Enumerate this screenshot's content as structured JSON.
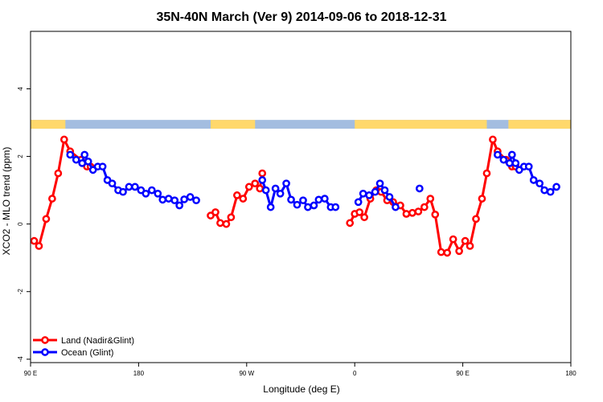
{
  "chart_data": {
    "type": "line",
    "title": "35N-40N March (Ver 9)   2014-09-06 to 2018-12-31",
    "xlabel": "Longitude (deg E)",
    "ylabel": "XCO2 - MLO trend (ppm)",
    "xlim": [
      90,
      540
    ],
    "ylim": [
      -4.1,
      5.7
    ],
    "x_ticks": [
      {
        "value": 90,
        "label": "90 E"
      },
      {
        "value": 180,
        "label": "180"
      },
      {
        "value": 270,
        "label": "90 W"
      },
      {
        "value": 360,
        "label": "0"
      },
      {
        "value": 450,
        "label": "90 E"
      },
      {
        "value": 540,
        "label": "180"
      }
    ],
    "y_ticks": [
      {
        "value": -4,
        "label": "-4"
      },
      {
        "value": -2,
        "label": "-2"
      },
      {
        "value": 0,
        "label": "0"
      },
      {
        "value": 2,
        "label": "2"
      },
      {
        "value": 4,
        "label": "4"
      }
    ],
    "legend_position": "bottom-left",
    "series": [
      {
        "name": "Land (Nadir&Glint)",
        "color": "#ff0000",
        "segments": [
          [
            [
              93,
              -0.5
            ],
            [
              97,
              -0.65
            ],
            [
              103,
              0.15
            ],
            [
              108,
              0.75
            ],
            [
              113,
              1.5
            ],
            [
              118,
              2.5
            ],
            [
              123,
              2.15
            ],
            [
              132,
              1.9
            ],
            [
              137,
              1.7
            ],
            [
              140,
              1.7
            ]
          ],
          [
            [
              240,
              0.25
            ],
            [
              244,
              0.35
            ],
            [
              248,
              0.03
            ],
            [
              253,
              0.0
            ],
            [
              257,
              0.2
            ],
            [
              262,
              0.85
            ],
            [
              267,
              0.75
            ],
            [
              272,
              1.1
            ],
            [
              277,
              1.2
            ],
            [
              281,
              1.05
            ],
            [
              283,
              1.5
            ]
          ],
          [
            [
              356,
              0.03
            ],
            [
              360,
              0.3
            ],
            [
              364,
              0.35
            ],
            [
              368,
              0.2
            ],
            [
              373,
              0.75
            ],
            [
              378,
              1.0
            ],
            [
              382,
              0.95
            ],
            [
              387,
              0.7
            ],
            [
              392,
              0.65
            ],
            [
              398,
              0.55
            ],
            [
              403,
              0.3
            ],
            [
              408,
              0.33
            ],
            [
              413,
              0.37
            ],
            [
              418,
              0.5
            ],
            [
              423,
              0.75
            ],
            [
              427,
              0.28
            ],
            [
              432,
              -0.83
            ],
            [
              437,
              -0.85
            ],
            [
              442,
              -0.45
            ],
            [
              447,
              -0.8
            ],
            [
              452,
              -0.5
            ],
            [
              456,
              -0.65
            ],
            [
              461,
              0.15
            ],
            [
              466,
              0.75
            ],
            [
              470,
              1.5
            ],
            [
              475,
              2.5
            ],
            [
              479,
              2.15
            ],
            [
              486,
              1.9
            ],
            [
              491,
              1.7
            ],
            [
              494,
              1.7
            ]
          ]
        ]
      },
      {
        "name": "Ocean (Glint)",
        "color": "#0000ff",
        "segments": [
          [
            [
              123,
              2.05
            ],
            [
              128,
              1.9
            ],
            [
              133,
              1.8
            ],
            [
              135,
              2.05
            ],
            [
              138,
              1.85
            ],
            [
              142,
              1.6
            ],
            [
              146,
              1.7
            ],
            [
              150,
              1.7
            ],
            [
              154,
              1.3
            ],
            [
              158,
              1.2
            ],
            [
              163,
              1.0
            ],
            [
              167,
              0.95
            ],
            [
              172,
              1.1
            ],
            [
              177,
              1.1
            ],
            [
              182,
              1.0
            ],
            [
              186,
              0.9
            ],
            [
              191,
              1.0
            ],
            [
              196,
              0.9
            ],
            [
              200,
              0.72
            ],
            [
              205,
              0.75
            ],
            [
              210,
              0.7
            ],
            [
              214,
              0.55
            ],
            [
              218,
              0.73
            ],
            [
              223,
              0.8
            ],
            [
              228,
              0.7
            ]
          ],
          [
            [
              283,
              1.3
            ],
            [
              286,
              1.0
            ],
            [
              290,
              0.5
            ],
            [
              294,
              1.05
            ],
            [
              298,
              0.9
            ],
            [
              303,
              1.2
            ],
            [
              307,
              0.72
            ],
            [
              312,
              0.57
            ],
            [
              317,
              0.7
            ],
            [
              321,
              0.5
            ],
            [
              326,
              0.55
            ],
            [
              330,
              0.72
            ],
            [
              335,
              0.75
            ],
            [
              340,
              0.5
            ],
            [
              344,
              0.5
            ]
          ],
          [
            [
              363,
              0.65
            ],
            [
              367,
              0.9
            ],
            [
              372,
              0.85
            ],
            [
              377,
              0.95
            ],
            [
              381,
              1.2
            ],
            [
              385,
              1.0
            ],
            [
              389,
              0.8
            ],
            [
              394,
              0.5
            ]
          ],
          [
            [
              414,
              1.05
            ]
          ],
          [
            [
              479,
              2.05
            ],
            [
              484,
              1.9
            ],
            [
              489,
              1.8
            ],
            [
              491,
              2.05
            ],
            [
              494,
              1.8
            ],
            [
              497,
              1.6
            ],
            [
              501,
              1.7
            ],
            [
              505,
              1.7
            ],
            [
              509,
              1.3
            ],
            [
              514,
              1.2
            ],
            [
              518,
              1.0
            ],
            [
              523,
              0.95
            ],
            [
              528,
              1.1
            ]
          ]
        ]
      }
    ],
    "land_ocean_band": {
      "land_color": "#ffd86b",
      "ocean_color": "#a3bde0",
      "land_ranges": [
        [
          90,
          119
        ],
        [
          240,
          277
        ],
        [
          360,
          470
        ],
        [
          488,
          540
        ]
      ]
    }
  }
}
